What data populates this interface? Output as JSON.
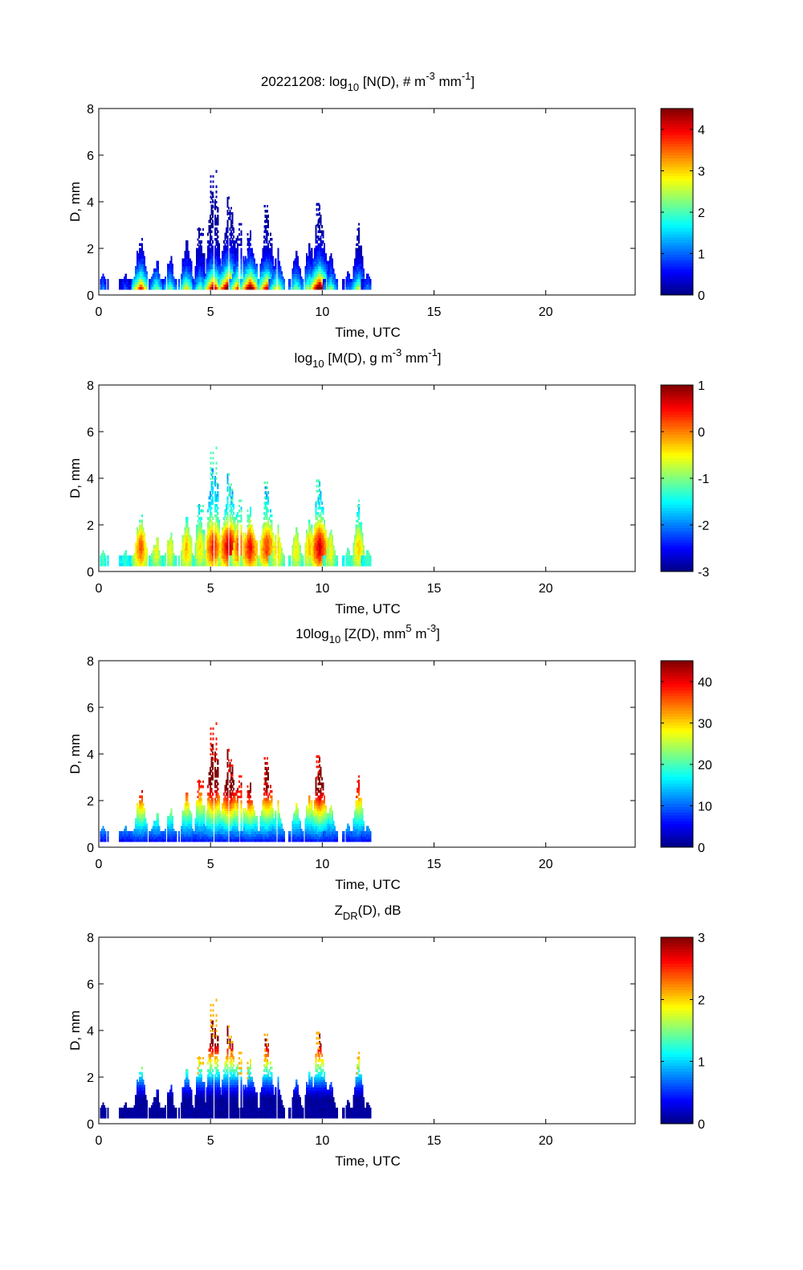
{
  "chart_data": [
    {
      "type": "heatmap",
      "date": "20221208",
      "title": {
        "pre": "20221208: log",
        "sub": "10",
        "mid": " [N(D), # m",
        "sup1": "-3",
        "mid2": " mm",
        "sup2": "-1",
        "post": "]"
      },
      "xlabel": "Time, UTC",
      "ylabel": "D, mm",
      "xlim": [
        0,
        24
      ],
      "ylim": [
        0,
        8
      ],
      "xticks": [
        {
          "v": 0,
          "label": "0"
        },
        {
          "v": 5,
          "label": "5"
        },
        {
          "v": 10,
          "label": "10"
        },
        {
          "v": 15,
          "label": "15"
        },
        {
          "v": 20,
          "label": "20"
        }
      ],
      "yticks": [
        {
          "v": 0,
          "label": "0"
        },
        {
          "v": 2,
          "label": "2"
        },
        {
          "v": 4,
          "label": "4"
        },
        {
          "v": 6,
          "label": "6"
        },
        {
          "v": 8,
          "label": "8"
        }
      ],
      "colorbar": {
        "range": [
          0,
          4.5
        ],
        "ticks": [
          {
            "v": 0,
            "label": "0"
          },
          {
            "v": 1,
            "label": "1"
          },
          {
            "v": 2,
            "label": "2"
          },
          {
            "v": 3,
            "label": "3"
          },
          {
            "v": 4,
            "label": "4"
          }
        ]
      },
      "colormap": "jet"
    },
    {
      "type": "heatmap",
      "title": {
        "pre": "log",
        "sub": "10",
        "mid": " [M(D), g m",
        "sup1": "-3",
        "mid2": " mm",
        "sup2": "-1",
        "post": "]"
      },
      "xlabel": "Time, UTC",
      "ylabel": "D, mm",
      "xlim": [
        0,
        24
      ],
      "ylim": [
        0,
        8
      ],
      "xticks": [
        {
          "v": 0,
          "label": "0"
        },
        {
          "v": 5,
          "label": "5"
        },
        {
          "v": 10,
          "label": "10"
        },
        {
          "v": 15,
          "label": "15"
        },
        {
          "v": 20,
          "label": "20"
        }
      ],
      "yticks": [
        {
          "v": 0,
          "label": "0"
        },
        {
          "v": 2,
          "label": "2"
        },
        {
          "v": 4,
          "label": "4"
        },
        {
          "v": 6,
          "label": "6"
        },
        {
          "v": 8,
          "label": "8"
        }
      ],
      "colorbar": {
        "range": [
          -3,
          1
        ],
        "ticks": [
          {
            "v": -3,
            "label": "-3"
          },
          {
            "v": -2,
            "label": "-2"
          },
          {
            "v": -1,
            "label": "-1"
          },
          {
            "v": 0,
            "label": "0"
          },
          {
            "v": 1,
            "label": "1"
          }
        ]
      },
      "colormap": "jet"
    },
    {
      "type": "heatmap",
      "title": {
        "pre": "10log",
        "sub": "10",
        "mid": " [Z(D),  mm",
        "sup1": "5",
        "mid2": " m",
        "sup2": "-3",
        "post": "]"
      },
      "xlabel": "Time, UTC",
      "ylabel": "D, mm",
      "xlim": [
        0,
        24
      ],
      "ylim": [
        0,
        8
      ],
      "xticks": [
        {
          "v": 0,
          "label": "0"
        },
        {
          "v": 5,
          "label": "5"
        },
        {
          "v": 10,
          "label": "10"
        },
        {
          "v": 15,
          "label": "15"
        },
        {
          "v": 20,
          "label": "20"
        }
      ],
      "yticks": [
        {
          "v": 0,
          "label": "0"
        },
        {
          "v": 2,
          "label": "2"
        },
        {
          "v": 4,
          "label": "4"
        },
        {
          "v": 6,
          "label": "6"
        },
        {
          "v": 8,
          "label": "8"
        }
      ],
      "colorbar": {
        "range": [
          0,
          45
        ],
        "ticks": [
          {
            "v": 0,
            "label": "0"
          },
          {
            "v": 10,
            "label": "10"
          },
          {
            "v": 20,
            "label": "20"
          },
          {
            "v": 30,
            "label": "30"
          },
          {
            "v": 40,
            "label": "40"
          }
        ]
      },
      "colormap": "jet"
    },
    {
      "type": "heatmap",
      "title": {
        "pre": "Z",
        "sub": "DR",
        "mid": "(D), dB",
        "sup1": "",
        "mid2": "",
        "sup2": "",
        "post": ""
      },
      "xlabel": "Time, UTC",
      "ylabel": "D, mm",
      "xlim": [
        0,
        24
      ],
      "ylim": [
        0,
        8
      ],
      "xticks": [
        {
          "v": 0,
          "label": "0"
        },
        {
          "v": 5,
          "label": "5"
        },
        {
          "v": 10,
          "label": "10"
        },
        {
          "v": 15,
          "label": "15"
        },
        {
          "v": 20,
          "label": "20"
        }
      ],
      "yticks": [
        {
          "v": 0,
          "label": "0"
        },
        {
          "v": 2,
          "label": "2"
        },
        {
          "v": 4,
          "label": "4"
        },
        {
          "v": 6,
          "label": "6"
        },
        {
          "v": 8,
          "label": "8"
        }
      ],
      "colorbar": {
        "range": [
          0,
          3
        ],
        "ticks": [
          {
            "v": 0,
            "label": "0"
          },
          {
            "v": 1,
            "label": "1"
          },
          {
            "v": 2,
            "label": "2"
          },
          {
            "v": 3,
            "label": "3"
          }
        ]
      },
      "colormap": "jet"
    }
  ],
  "events": [
    {
      "t": 0.15,
      "d": 1.0,
      "i": 0.3
    },
    {
      "t": 1.15,
      "d": 0.9,
      "i": 0.25
    },
    {
      "t": 1.85,
      "d": 2.5,
      "i": 0.75
    },
    {
      "t": 2.55,
      "d": 1.5,
      "i": 0.5
    },
    {
      "t": 3.15,
      "d": 1.7,
      "i": 0.5
    },
    {
      "t": 3.9,
      "d": 2.5,
      "i": 0.6
    },
    {
      "t": 4.5,
      "d": 3.0,
      "i": 0.5
    },
    {
      "t": 5.1,
      "d": 5.3,
      "i": 0.85
    },
    {
      "t": 5.8,
      "d": 4.3,
      "i": 1.0
    },
    {
      "t": 6.25,
      "d": 3.0,
      "i": 0.8
    },
    {
      "t": 6.75,
      "d": 2.7,
      "i": 0.9
    },
    {
      "t": 7.5,
      "d": 3.8,
      "i": 0.8
    },
    {
      "t": 7.95,
      "d": 2.0,
      "i": 0.6
    },
    {
      "t": 8.8,
      "d": 2.0,
      "i": 0.5
    },
    {
      "t": 9.4,
      "d": 2.5,
      "i": 0.6
    },
    {
      "t": 9.85,
      "d": 3.9,
      "i": 0.95
    },
    {
      "t": 10.35,
      "d": 1.8,
      "i": 0.5
    },
    {
      "t": 11.15,
      "d": 1.0,
      "i": 0.3
    },
    {
      "t": 11.6,
      "d": 3.0,
      "i": 0.55
    },
    {
      "t": 12.0,
      "d": 1.0,
      "i": 0.3
    }
  ]
}
